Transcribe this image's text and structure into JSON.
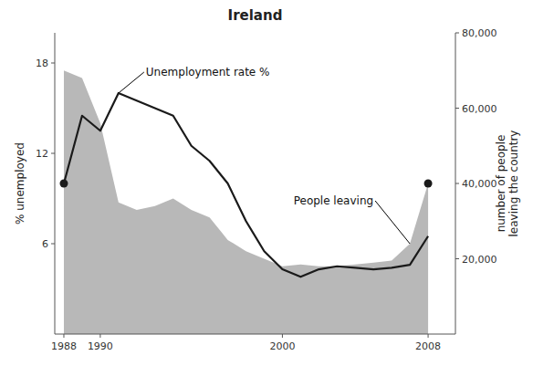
{
  "chart_data": {
    "type": "line",
    "title": "Ireland",
    "ylabel": "% unemployed",
    "y2label": "number of people\nleaving the country",
    "x": [
      1988,
      1989,
      1990,
      1991,
      1992,
      1993,
      1994,
      1995,
      1996,
      1997,
      1998,
      1999,
      2000,
      2001,
      2002,
      2003,
      2004,
      2005,
      2006,
      2007,
      2008
    ],
    "xlim": [
      1987.5,
      2009.5
    ],
    "xticks": [
      1988,
      1990,
      2000,
      2008
    ],
    "ylim": [
      0,
      20
    ],
    "yticks": [
      6,
      12,
      18
    ],
    "y2lim": [
      0,
      80000
    ],
    "y2ticks": [
      {
        "value": 20000,
        "label": "20,000"
      },
      {
        "value": 40000,
        "label": "40,000"
      },
      {
        "value": 60000,
        "label": "60,000"
      },
      {
        "value": 80000,
        "label": "80,000"
      }
    ],
    "grid": false,
    "series": [
      {
        "name": "Unemployment rate %",
        "type": "line",
        "color": "#1a1a1a",
        "values": [
          10.0,
          14.5,
          13.5,
          16.0,
          15.5,
          15.0,
          14.5,
          12.5,
          11.5,
          10.0,
          7.5,
          5.5,
          4.3,
          3.8,
          4.3,
          4.5,
          4.4,
          4.3,
          4.4,
          4.6,
          6.5
        ]
      },
      {
        "name": "People leaving",
        "type": "area",
        "axis": "y2",
        "color": "#b8b8b8",
        "values": [
          70000,
          68000,
          56000,
          35000,
          33000,
          34000,
          36000,
          33000,
          31000,
          25000,
          22000,
          20000,
          18000,
          18500,
          18000,
          18000,
          18500,
          19000,
          19500,
          24000,
          40000
        ]
      }
    ]
  }
}
